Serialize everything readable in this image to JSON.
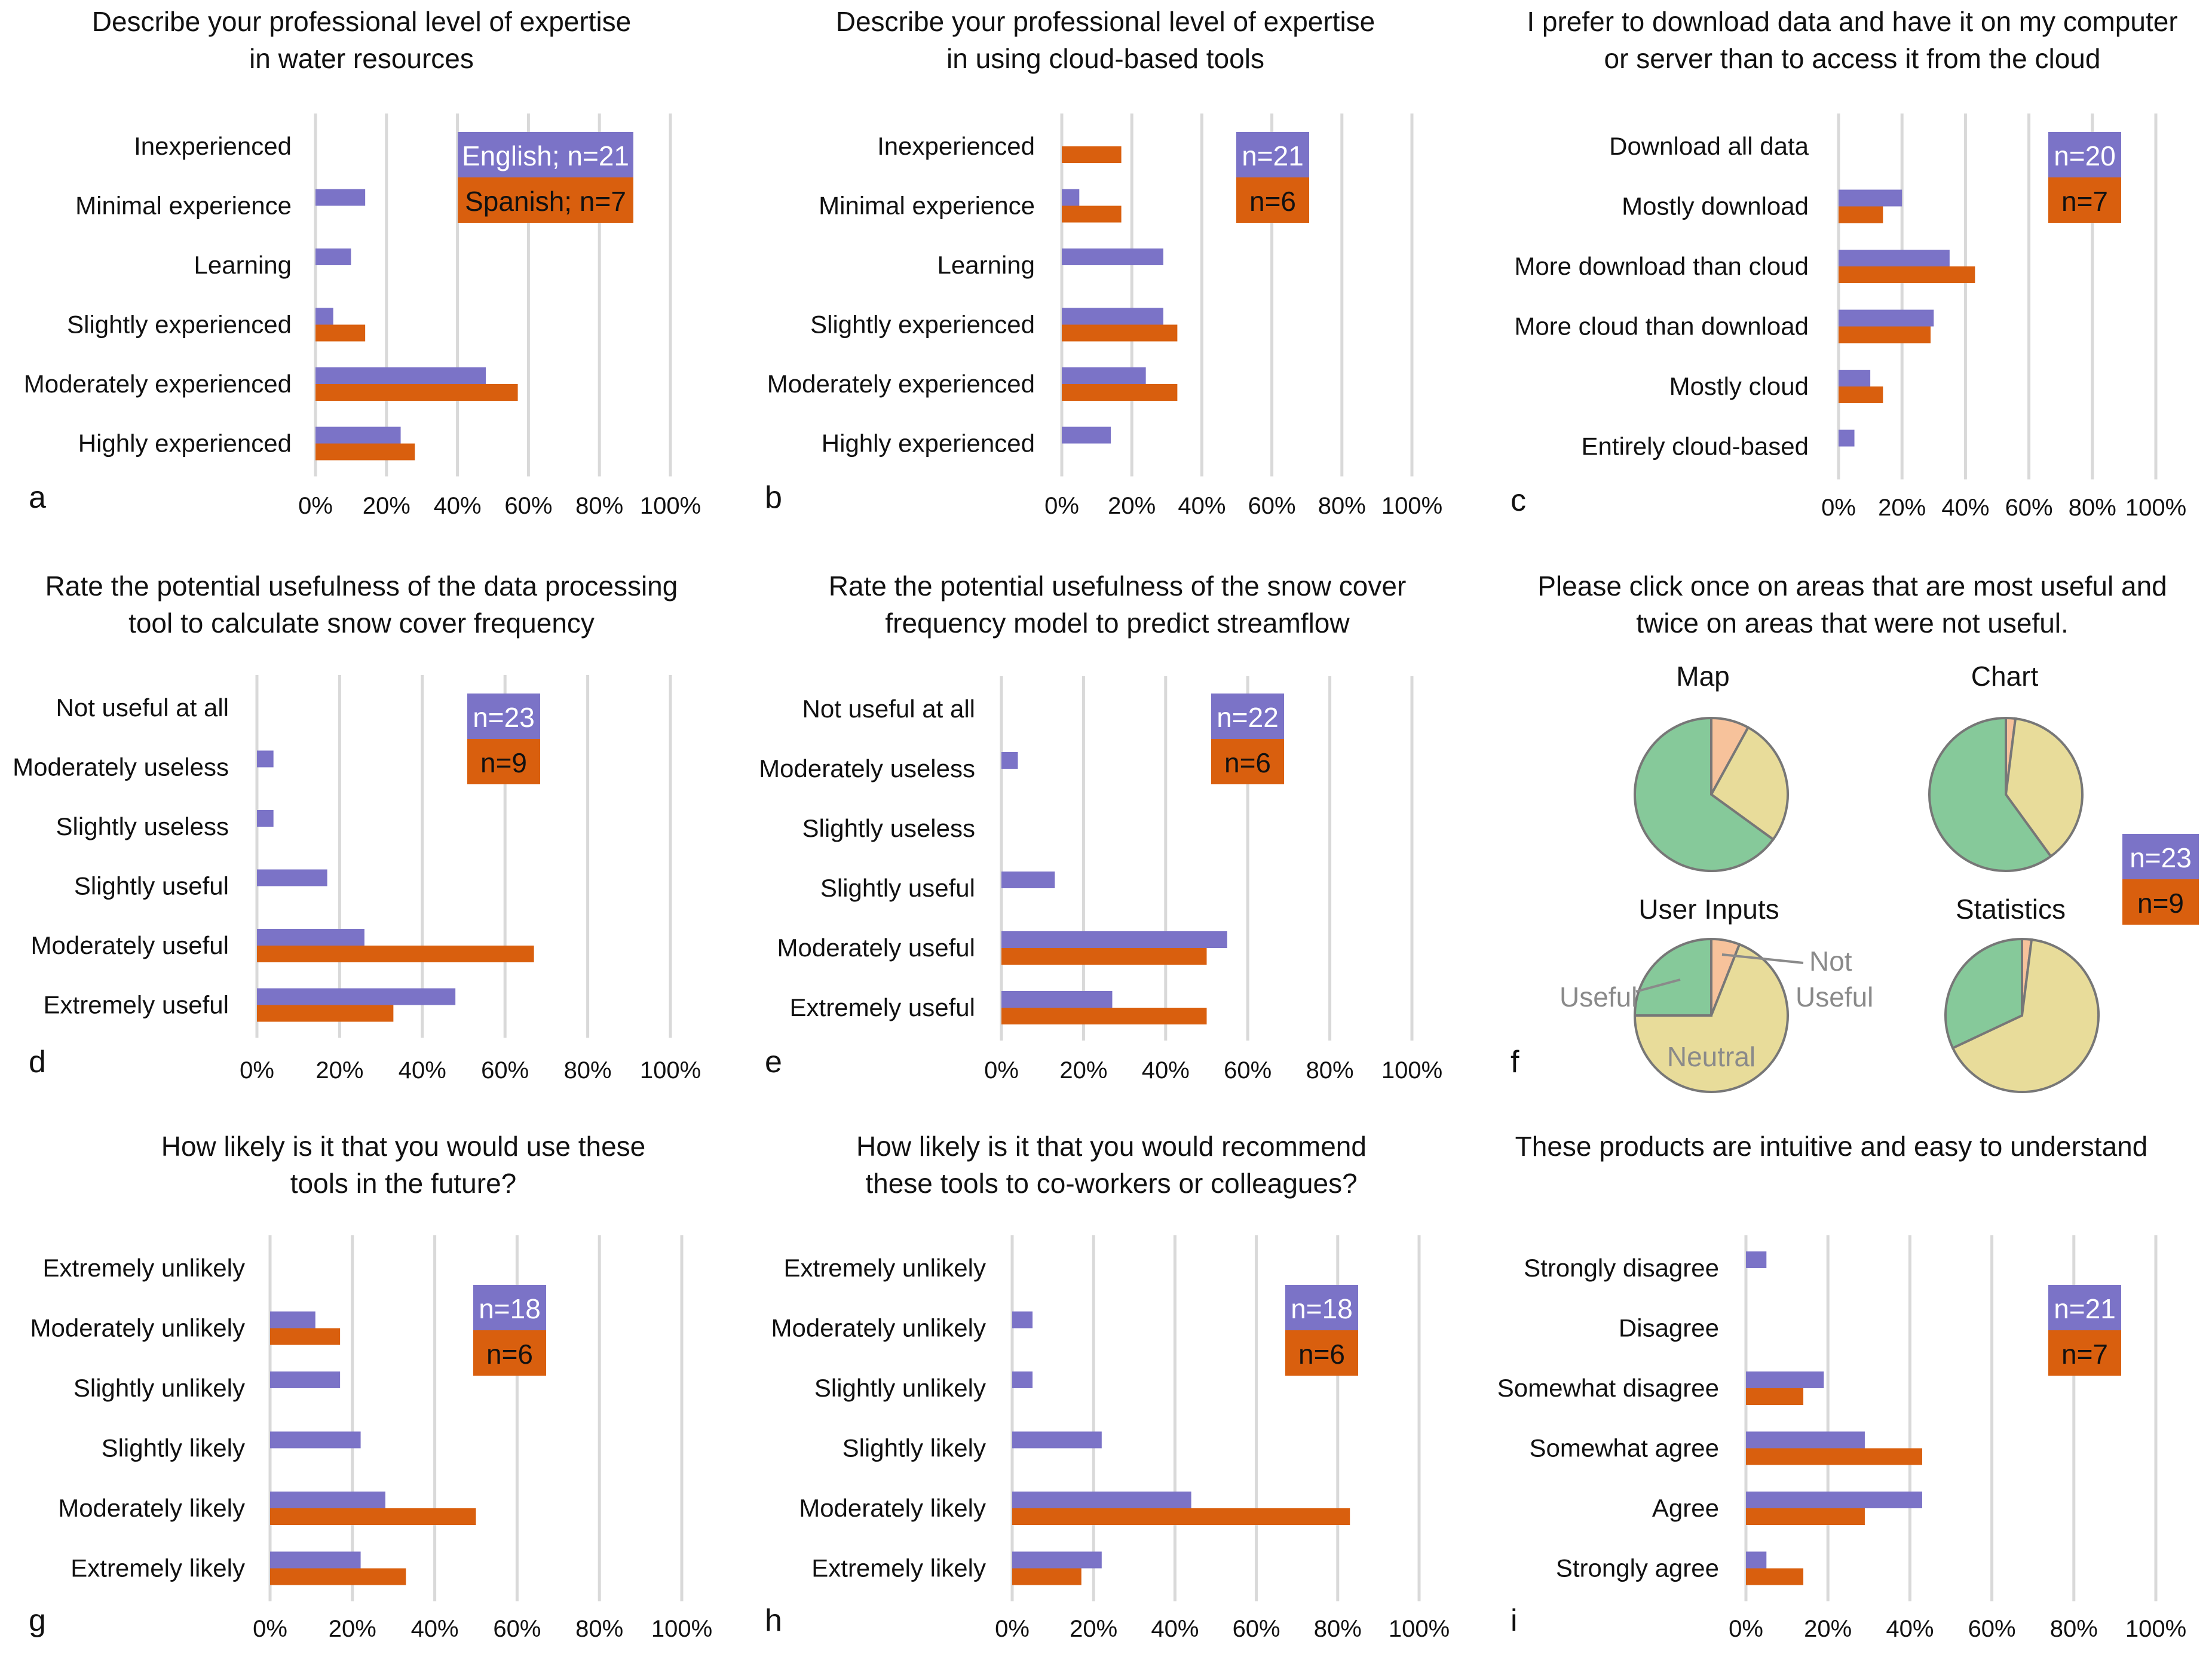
{
  "colors": {
    "english": "#7b73c7",
    "spanish": "#d95f0e",
    "grid": "#d9d9d9",
    "useful": "#86c99a",
    "neutral": "#e8dc9a",
    "not_useful": "#f7c29b",
    "pie_edge": "#777777"
  },
  "chart_data": [
    {
      "id": "a",
      "panel_label": "a",
      "type": "bar",
      "orientation": "horizontal",
      "title": [
        "Describe your professional level of expertise",
        "in water resources"
      ],
      "categories": [
        "Inexperienced",
        "Minimal experience",
        "Learning",
        "Slightly experienced",
        "Moderately experienced",
        "Highly experienced"
      ],
      "series": [
        {
          "name": "English",
          "values": [
            0,
            14,
            10,
            5,
            48,
            24
          ]
        },
        {
          "name": "Spanish",
          "values": [
            0,
            0,
            0,
            14,
            57,
            28
          ]
        }
      ],
      "xlim": [
        0,
        100
      ],
      "ticks": [
        "0%",
        "20%",
        "40%",
        "60%",
        "80%",
        "100%"
      ],
      "legend": [
        "English; n=21",
        "Spanish; n=7"
      ],
      "legend_position": "top-right"
    },
    {
      "id": "b",
      "panel_label": "b",
      "type": "bar",
      "orientation": "horizontal",
      "title": [
        "Describe your professional level of expertise",
        "in using cloud-based tools"
      ],
      "categories": [
        "Inexperienced",
        "Minimal experience",
        "Learning",
        "Slightly experienced",
        "Moderately experienced",
        "Highly experienced"
      ],
      "series": [
        {
          "name": "English",
          "values": [
            0,
            5,
            29,
            29,
            24,
            14
          ]
        },
        {
          "name": "Spanish",
          "values": [
            17,
            17,
            0,
            33,
            33,
            0
          ]
        }
      ],
      "xlim": [
        0,
        100
      ],
      "ticks": [
        "0%",
        "20%",
        "40%",
        "60%",
        "80%",
        "100%"
      ],
      "legend": [
        "n=21",
        "n=6"
      ],
      "legend_position": "top-right"
    },
    {
      "id": "c",
      "panel_label": "c",
      "type": "bar",
      "orientation": "horizontal",
      "title": [
        "I prefer to download data and have it on my computer",
        "or server than to access it from the cloud"
      ],
      "categories": [
        "Download all data",
        "Mostly download",
        "More download than cloud",
        "More cloud than download",
        "Mostly cloud",
        "Entirely cloud-based"
      ],
      "series": [
        {
          "name": "English",
          "values": [
            0,
            20,
            35,
            30,
            10,
            5
          ]
        },
        {
          "name": "Spanish",
          "values": [
            0,
            14,
            43,
            29,
            14,
            0
          ]
        }
      ],
      "xlim": [
        0,
        100
      ],
      "ticks": [
        "0%",
        "20%",
        "40%",
        "60%",
        "80%",
        "100%"
      ],
      "legend": [
        "n=20",
        "n=7"
      ],
      "legend_position": "top-right"
    },
    {
      "id": "d",
      "panel_label": "d",
      "type": "bar",
      "orientation": "horizontal",
      "title": [
        "Rate the potential usefulness of the data processing",
        "tool to calculate snow cover frequency"
      ],
      "categories": [
        "Not useful at all",
        "Moderately useless",
        "Slightly useless",
        "Slightly useful",
        "Moderately useful",
        "Extremely useful"
      ],
      "series": [
        {
          "name": "English",
          "values": [
            0,
            4,
            4,
            17,
            26,
            48
          ]
        },
        {
          "name": "Spanish",
          "values": [
            0,
            0,
            0,
            0,
            67,
            33
          ]
        }
      ],
      "xlim": [
        0,
        100
      ],
      "ticks": [
        "0%",
        "20%",
        "40%",
        "60%",
        "80%",
        "100%"
      ],
      "legend": [
        "n=23",
        "n=9"
      ],
      "legend_position": "top-right"
    },
    {
      "id": "e",
      "panel_label": "e",
      "type": "bar",
      "orientation": "horizontal",
      "title": [
        "Rate the potential usefulness of the snow cover",
        "frequency model to predict streamflow"
      ],
      "categories": [
        "Not useful at all",
        "Moderately useless",
        "Slightly useless",
        "Slightly useful",
        "Moderately useful",
        "Extremely useful"
      ],
      "series": [
        {
          "name": "English",
          "values": [
            0,
            4,
            0,
            13,
            55,
            27
          ]
        },
        {
          "name": "Spanish",
          "values": [
            0,
            0,
            0,
            0,
            50,
            50
          ]
        }
      ],
      "xlim": [
        0,
        100
      ],
      "ticks": [
        "0%",
        "20%",
        "40%",
        "60%",
        "80%",
        "100%"
      ],
      "legend": [
        "n=22",
        "n=6"
      ],
      "legend_position": "top-right"
    },
    {
      "id": "f",
      "panel_label": "f",
      "type": "pie",
      "title": [
        "Please click once on areas that are most useful and",
        "twice on areas that were not useful."
      ],
      "slices": [
        "Useful",
        "Neutral",
        "Not useful"
      ],
      "pies": [
        {
          "name": "Map",
          "values": [
            65,
            27,
            8
          ]
        },
        {
          "name": "Chart",
          "values": [
            60,
            38,
            2
          ]
        },
        {
          "name": "User Inputs",
          "values": [
            25,
            69,
            6
          ]
        },
        {
          "name": "Statistics",
          "values": [
            32,
            66,
            2
          ]
        }
      ],
      "annotations": {
        "useful": "Useful",
        "neutral": "Neutral",
        "not_useful_1": "Not",
        "not_useful_2": "Useful"
      },
      "legend": [
        "n=23",
        "n=9"
      ],
      "legend_position": "right"
    },
    {
      "id": "g",
      "panel_label": "g",
      "type": "bar",
      "orientation": "horizontal",
      "title": [
        "How likely is it that you would use these",
        "tools in the future?"
      ],
      "categories": [
        "Extremely unlikely",
        "Moderately unlikely",
        "Slightly unlikely",
        "Slightly likely",
        "Moderately likely",
        "Extremely likely"
      ],
      "series": [
        {
          "name": "English",
          "values": [
            0,
            11,
            17,
            22,
            28,
            22
          ]
        },
        {
          "name": "Spanish",
          "values": [
            0,
            17,
            0,
            0,
            50,
            33
          ]
        }
      ],
      "xlim": [
        0,
        100
      ],
      "ticks": [
        "0%",
        "20%",
        "40%",
        "60%",
        "80%",
        "100%"
      ],
      "legend": [
        "n=18",
        "n=6"
      ],
      "legend_position": "top-right"
    },
    {
      "id": "h",
      "panel_label": "h",
      "type": "bar",
      "orientation": "horizontal",
      "title": [
        "How likely is it that you would recommend",
        "these tools to co-workers or colleagues?"
      ],
      "categories": [
        "Extremely unlikely",
        "Moderately unlikely",
        "Slightly unlikely",
        "Slightly likely",
        "Moderately likely",
        "Extremely likely"
      ],
      "series": [
        {
          "name": "English",
          "values": [
            0,
            5,
            5,
            22,
            44,
            22
          ]
        },
        {
          "name": "Spanish",
          "values": [
            0,
            0,
            0,
            0,
            83,
            17
          ]
        }
      ],
      "xlim": [
        0,
        100
      ],
      "ticks": [
        "0%",
        "20%",
        "40%",
        "60%",
        "80%",
        "100%"
      ],
      "legend": [
        "n=18",
        "n=6"
      ],
      "legend_position": "top-right"
    },
    {
      "id": "i",
      "panel_label": "i",
      "type": "bar",
      "orientation": "horizontal",
      "title": [
        "These products are intuitive and easy to understand"
      ],
      "categories": [
        "Strongly disagree",
        "Disagree",
        "Somewhat disagree",
        "Somewhat agree",
        "Agree",
        "Strongly agree"
      ],
      "series": [
        {
          "name": "English",
          "values": [
            5,
            0,
            19,
            29,
            43,
            5
          ]
        },
        {
          "name": "Spanish",
          "values": [
            0,
            0,
            14,
            43,
            29,
            14
          ]
        }
      ],
      "xlim": [
        0,
        100
      ],
      "ticks": [
        "0%",
        "20%",
        "40%",
        "60%",
        "80%",
        "100%"
      ],
      "legend": [
        "n=21",
        "n=7"
      ],
      "legend_position": "top-right"
    }
  ]
}
